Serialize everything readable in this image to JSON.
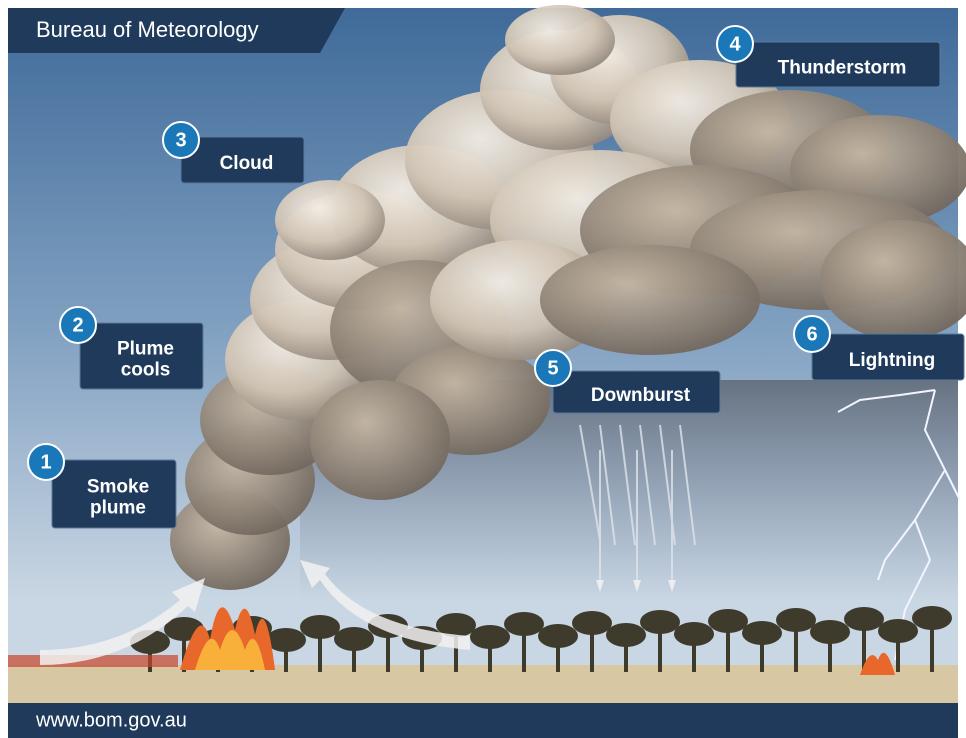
{
  "header": {
    "title": "Bureau of Meteorology"
  },
  "steps": [
    {
      "number": 1,
      "lines": [
        "Smoke",
        "plume"
      ]
    },
    {
      "number": 2,
      "lines": [
        "Plume",
        "cools"
      ]
    },
    {
      "number": 3,
      "lines": [
        "Cloud"
      ]
    },
    {
      "number": 4,
      "lines": [
        "Thunderstorm"
      ]
    },
    {
      "number": 5,
      "lines": [
        "Downburst"
      ]
    },
    {
      "number": 6,
      "lines": [
        "Lightning"
      ]
    }
  ],
  "footer": {
    "url": "www.bom.gov.au"
  }
}
